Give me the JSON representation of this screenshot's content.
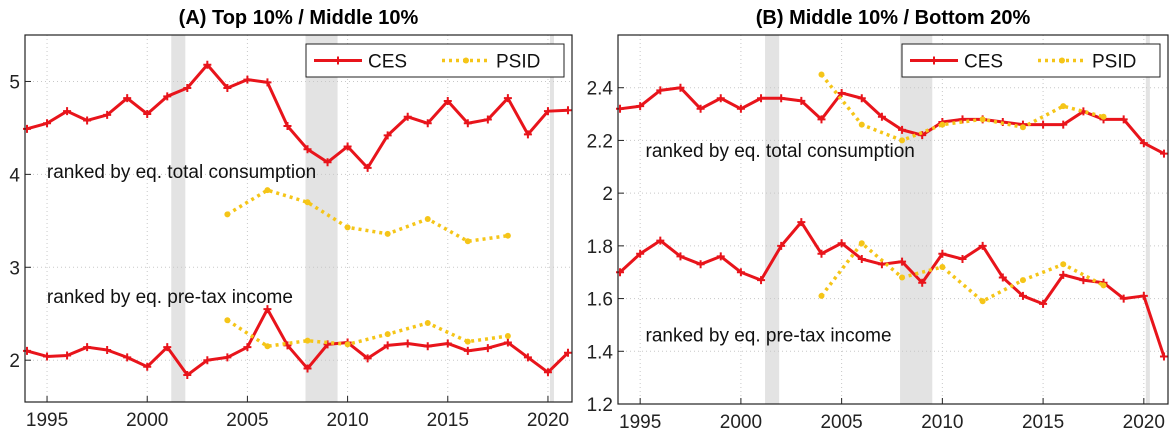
{
  "chart_data": [
    {
      "type": "line",
      "title": "(A) Top 10% / Middle 10%",
      "xlim": [
        1993.9,
        2021.2
      ],
      "xticks": [
        1995,
        2000,
        2005,
        2010,
        2015,
        2020
      ],
      "ylim": [
        1.55,
        5.5
      ],
      "yticks": [
        2,
        3,
        4,
        5
      ],
      "grid": true,
      "legend": "upper right",
      "shaded_periods": [
        [
          2001.2,
          2001.9
        ],
        [
          2007.9,
          2009.5
        ],
        [
          2020.1,
          2020.3
        ]
      ],
      "group_labels": [
        "ranked by eq. total consumption",
        "ranked by eq. pre-tax income"
      ],
      "series": [
        {
          "name": "CES",
          "color": "#e8141b",
          "dashed": false,
          "x": [
            1994,
            1995,
            1996,
            1997,
            1998,
            1999,
            2000,
            2001,
            2002,
            2003,
            2004,
            2005,
            2006,
            2007,
            2008,
            2009,
            2010,
            2011,
            2012,
            2013,
            2014,
            2015,
            2016,
            2017,
            2018,
            2019,
            2020,
            2021
          ],
          "values": [
            [
              4.49,
              4.55,
              4.68,
              4.58,
              4.64,
              4.82,
              4.65,
              4.84,
              4.93,
              5.18,
              4.93,
              5.02,
              4.99,
              4.52,
              4.27,
              4.13,
              4.3,
              4.07,
              4.42,
              4.62,
              4.55,
              4.79,
              4.55,
              4.59,
              4.82,
              4.43,
              4.68,
              4.69
            ],
            [
              2.1,
              2.04,
              2.05,
              2.14,
              2.11,
              2.03,
              1.93,
              2.14,
              1.84,
              2.0,
              2.03,
              2.14,
              2.55,
              2.16,
              1.91,
              2.17,
              2.19,
              2.02,
              2.16,
              2.18,
              2.15,
              2.18,
              2.1,
              2.13,
              2.19,
              2.03,
              1.87,
              2.08
            ]
          ]
        },
        {
          "name": "PSID",
          "color": "#f5c518",
          "dashed": true,
          "x": [
            2004,
            2006,
            2008,
            2010,
            2012,
            2014,
            2016,
            2018
          ],
          "values": [
            [
              3.57,
              3.83,
              3.7,
              3.43,
              3.36,
              3.52,
              3.28,
              3.34
            ],
            [
              2.43,
              2.15,
              2.21,
              2.17,
              2.28,
              2.4,
              2.2,
              2.26
            ]
          ]
        }
      ]
    },
    {
      "type": "line",
      "title": "(B) Middle 10% / Bottom 20%",
      "xlim": [
        1993.9,
        2021.2
      ],
      "xticks": [
        1995,
        2000,
        2005,
        2010,
        2015,
        2020
      ],
      "ylim": [
        1.2,
        2.6
      ],
      "yticks": [
        1.2,
        1.4,
        1.6,
        1.8,
        2,
        2.2,
        2.4
      ],
      "grid": true,
      "legend": "upper right",
      "shaded_periods": [
        [
          2001.2,
          2001.9
        ],
        [
          2007.9,
          2009.5
        ],
        [
          2020.1,
          2020.3
        ]
      ],
      "group_labels": [
        "ranked by eq. total consumption",
        "ranked by eq. pre-tax income"
      ],
      "series": [
        {
          "name": "CES",
          "color": "#e8141b",
          "dashed": false,
          "x": [
            1994,
            1995,
            1996,
            1997,
            1998,
            1999,
            2000,
            2001,
            2002,
            2003,
            2004,
            2005,
            2006,
            2007,
            2008,
            2009,
            2010,
            2011,
            2012,
            2013,
            2014,
            2015,
            2016,
            2017,
            2018,
            2019,
            2020,
            2021
          ],
          "values": [
            [
              2.32,
              2.33,
              2.39,
              2.4,
              2.32,
              2.36,
              2.32,
              2.36,
              2.36,
              2.35,
              2.28,
              2.38,
              2.36,
              2.29,
              2.24,
              2.22,
              2.27,
              2.28,
              2.28,
              2.27,
              2.26,
              2.26,
              2.26,
              2.31,
              2.28,
              2.28,
              2.19,
              2.15
            ],
            [
              1.7,
              1.77,
              1.82,
              1.76,
              1.73,
              1.76,
              1.7,
              1.67,
              1.8,
              1.89,
              1.77,
              1.81,
              1.75,
              1.73,
              1.74,
              1.66,
              1.77,
              1.75,
              1.8,
              1.68,
              1.61,
              1.58,
              1.69,
              1.67,
              1.66,
              1.6,
              1.61,
              1.38
            ]
          ]
        },
        {
          "name": "PSID",
          "color": "#f5c518",
          "dashed": true,
          "x": [
            2004,
            2006,
            2008,
            2010,
            2012,
            2014,
            2016,
            2018
          ],
          "values": [
            [
              2.45,
              2.26,
              2.2,
              2.26,
              2.28,
              2.25,
              2.33,
              2.29
            ],
            [
              1.61,
              1.81,
              1.68,
              1.72,
              1.59,
              1.67,
              1.73,
              1.65
            ]
          ]
        }
      ]
    }
  ]
}
